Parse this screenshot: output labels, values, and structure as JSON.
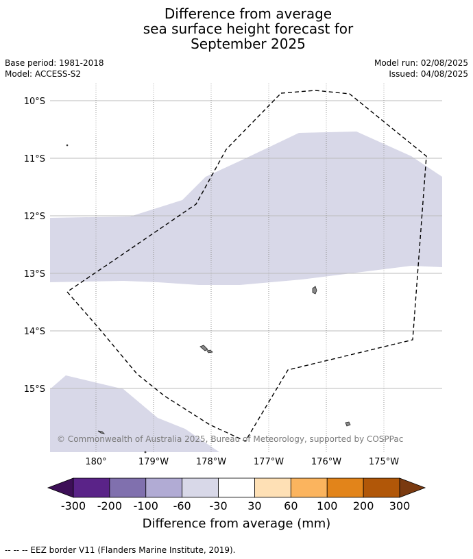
{
  "title": {
    "line1": "Difference from average",
    "line2": "sea surface height forecast for",
    "line3": "September 2025"
  },
  "meta": {
    "base_period": "Base period: 1981-2018",
    "model": "Model: ACCESS-S2",
    "model_run": "Model run: 02/08/2025",
    "issued": "Issued: 04/08/2025"
  },
  "map": {
    "lat_labels": [
      "10°S",
      "11°S",
      "12°S",
      "13°S",
      "14°S",
      "15°S"
    ],
    "lon_labels": [
      "180°",
      "179°W",
      "178°W",
      "177°W",
      "176°W",
      "175°W"
    ],
    "copyright": "© Commonwealth of Australia 2025, Bureau of Meteorology, supported by COSPPac",
    "anomaly_fill_color": "#d8d8e8",
    "eez_line_color": "#000000",
    "gridline_color": "#bbbbbb"
  },
  "colorbar": {
    "label": "Difference from average (mm)",
    "ticks": [
      "-300",
      "-200",
      "-100",
      "-60",
      "-30",
      "30",
      "60",
      "100",
      "200",
      "300"
    ],
    "under_color": "#3d0f57",
    "over_color": "#7a3a10",
    "colors": [
      "#5a2388",
      "#8070ae",
      "#b1abd4",
      "#d8d8e8",
      "#ffffff",
      "#fee0b5",
      "#fbb45e",
      "#e2841a",
      "#b15708"
    ]
  },
  "footer": {
    "text": "--  --  -- EEZ border V11 (Flanders Marine Institute, 2019)."
  }
}
